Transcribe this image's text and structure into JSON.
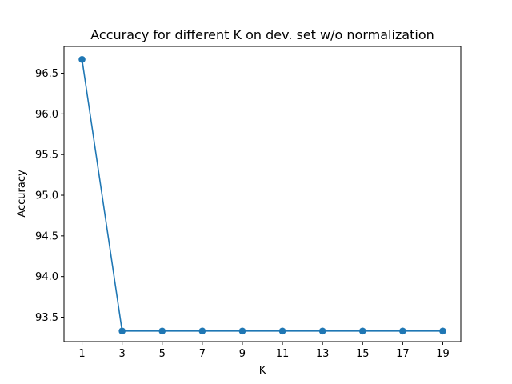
{
  "chart_data": {
    "type": "line",
    "title": "Accuracy for different K on dev. set w/o normalization",
    "xlabel": "K",
    "ylabel": "Accuracy",
    "x": [
      1,
      3,
      5,
      7,
      9,
      11,
      13,
      15,
      17,
      19
    ],
    "xticks": [
      "1",
      "3",
      "5",
      "7",
      "9",
      "11",
      "13",
      "15",
      "17",
      "19"
    ],
    "yticks": [
      "93.5",
      "94.0",
      "94.5",
      "95.0",
      "95.5",
      "96.0",
      "96.5"
    ],
    "ytick_values": [
      93.5,
      94.0,
      94.5,
      95.0,
      95.5,
      96.0,
      96.5
    ],
    "series": [
      {
        "values": [
          96.67,
          93.33,
          93.33,
          93.33,
          93.33,
          93.33,
          93.33,
          93.33,
          93.33,
          93.33
        ],
        "color": "#1f77b4",
        "marker": "circle"
      }
    ],
    "xlim": [
      0.1,
      19.9
    ],
    "ylim": [
      93.2,
      96.83
    ],
    "grid": false,
    "legend": null
  }
}
